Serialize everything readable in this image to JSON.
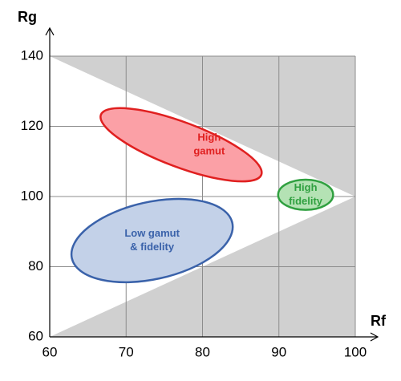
{
  "chart_data": {
    "type": "region",
    "xlabel": "Rf",
    "ylabel": "Rg",
    "xlim": [
      60,
      100
    ],
    "ylim": [
      60,
      140
    ],
    "xticks": [
      60,
      70,
      80,
      90,
      100
    ],
    "yticks": [
      60,
      80,
      100,
      120,
      140
    ],
    "grid": true,
    "regions": [
      {
        "color": "#d0d0d0",
        "points": [
          [
            60,
            140
          ],
          [
            100,
            140
          ],
          [
            100,
            100
          ]
        ]
      },
      {
        "color": "#d0d0d0",
        "points": [
          [
            60,
            60
          ],
          [
            100,
            100
          ],
          [
            100,
            60
          ]
        ]
      }
    ],
    "ellipses": [
      {
        "label": [
          "High",
          "gamut"
        ],
        "color": "#e02020",
        "fill": "#fba0a6",
        "start": [
          66.7,
          123.3
        ],
        "end": [
          87.7,
          106.2
        ],
        "half_width": 6.4
      },
      {
        "label": [
          "High",
          "fidelity"
        ],
        "color": "#30a040",
        "fill": "#b4e2b4",
        "start": [
          89.9,
          100.5
        ],
        "end": [
          97.1,
          100.5
        ],
        "half_width": 4.3
      },
      {
        "label": [
          "Low gamut",
          "& fidelity"
        ],
        "color": "#3a62aa",
        "fill": "#c3d1e8",
        "start": [
          62.9,
          82.4
        ],
        "end": [
          83.9,
          92.5
        ],
        "half_width": 11
      }
    ]
  }
}
